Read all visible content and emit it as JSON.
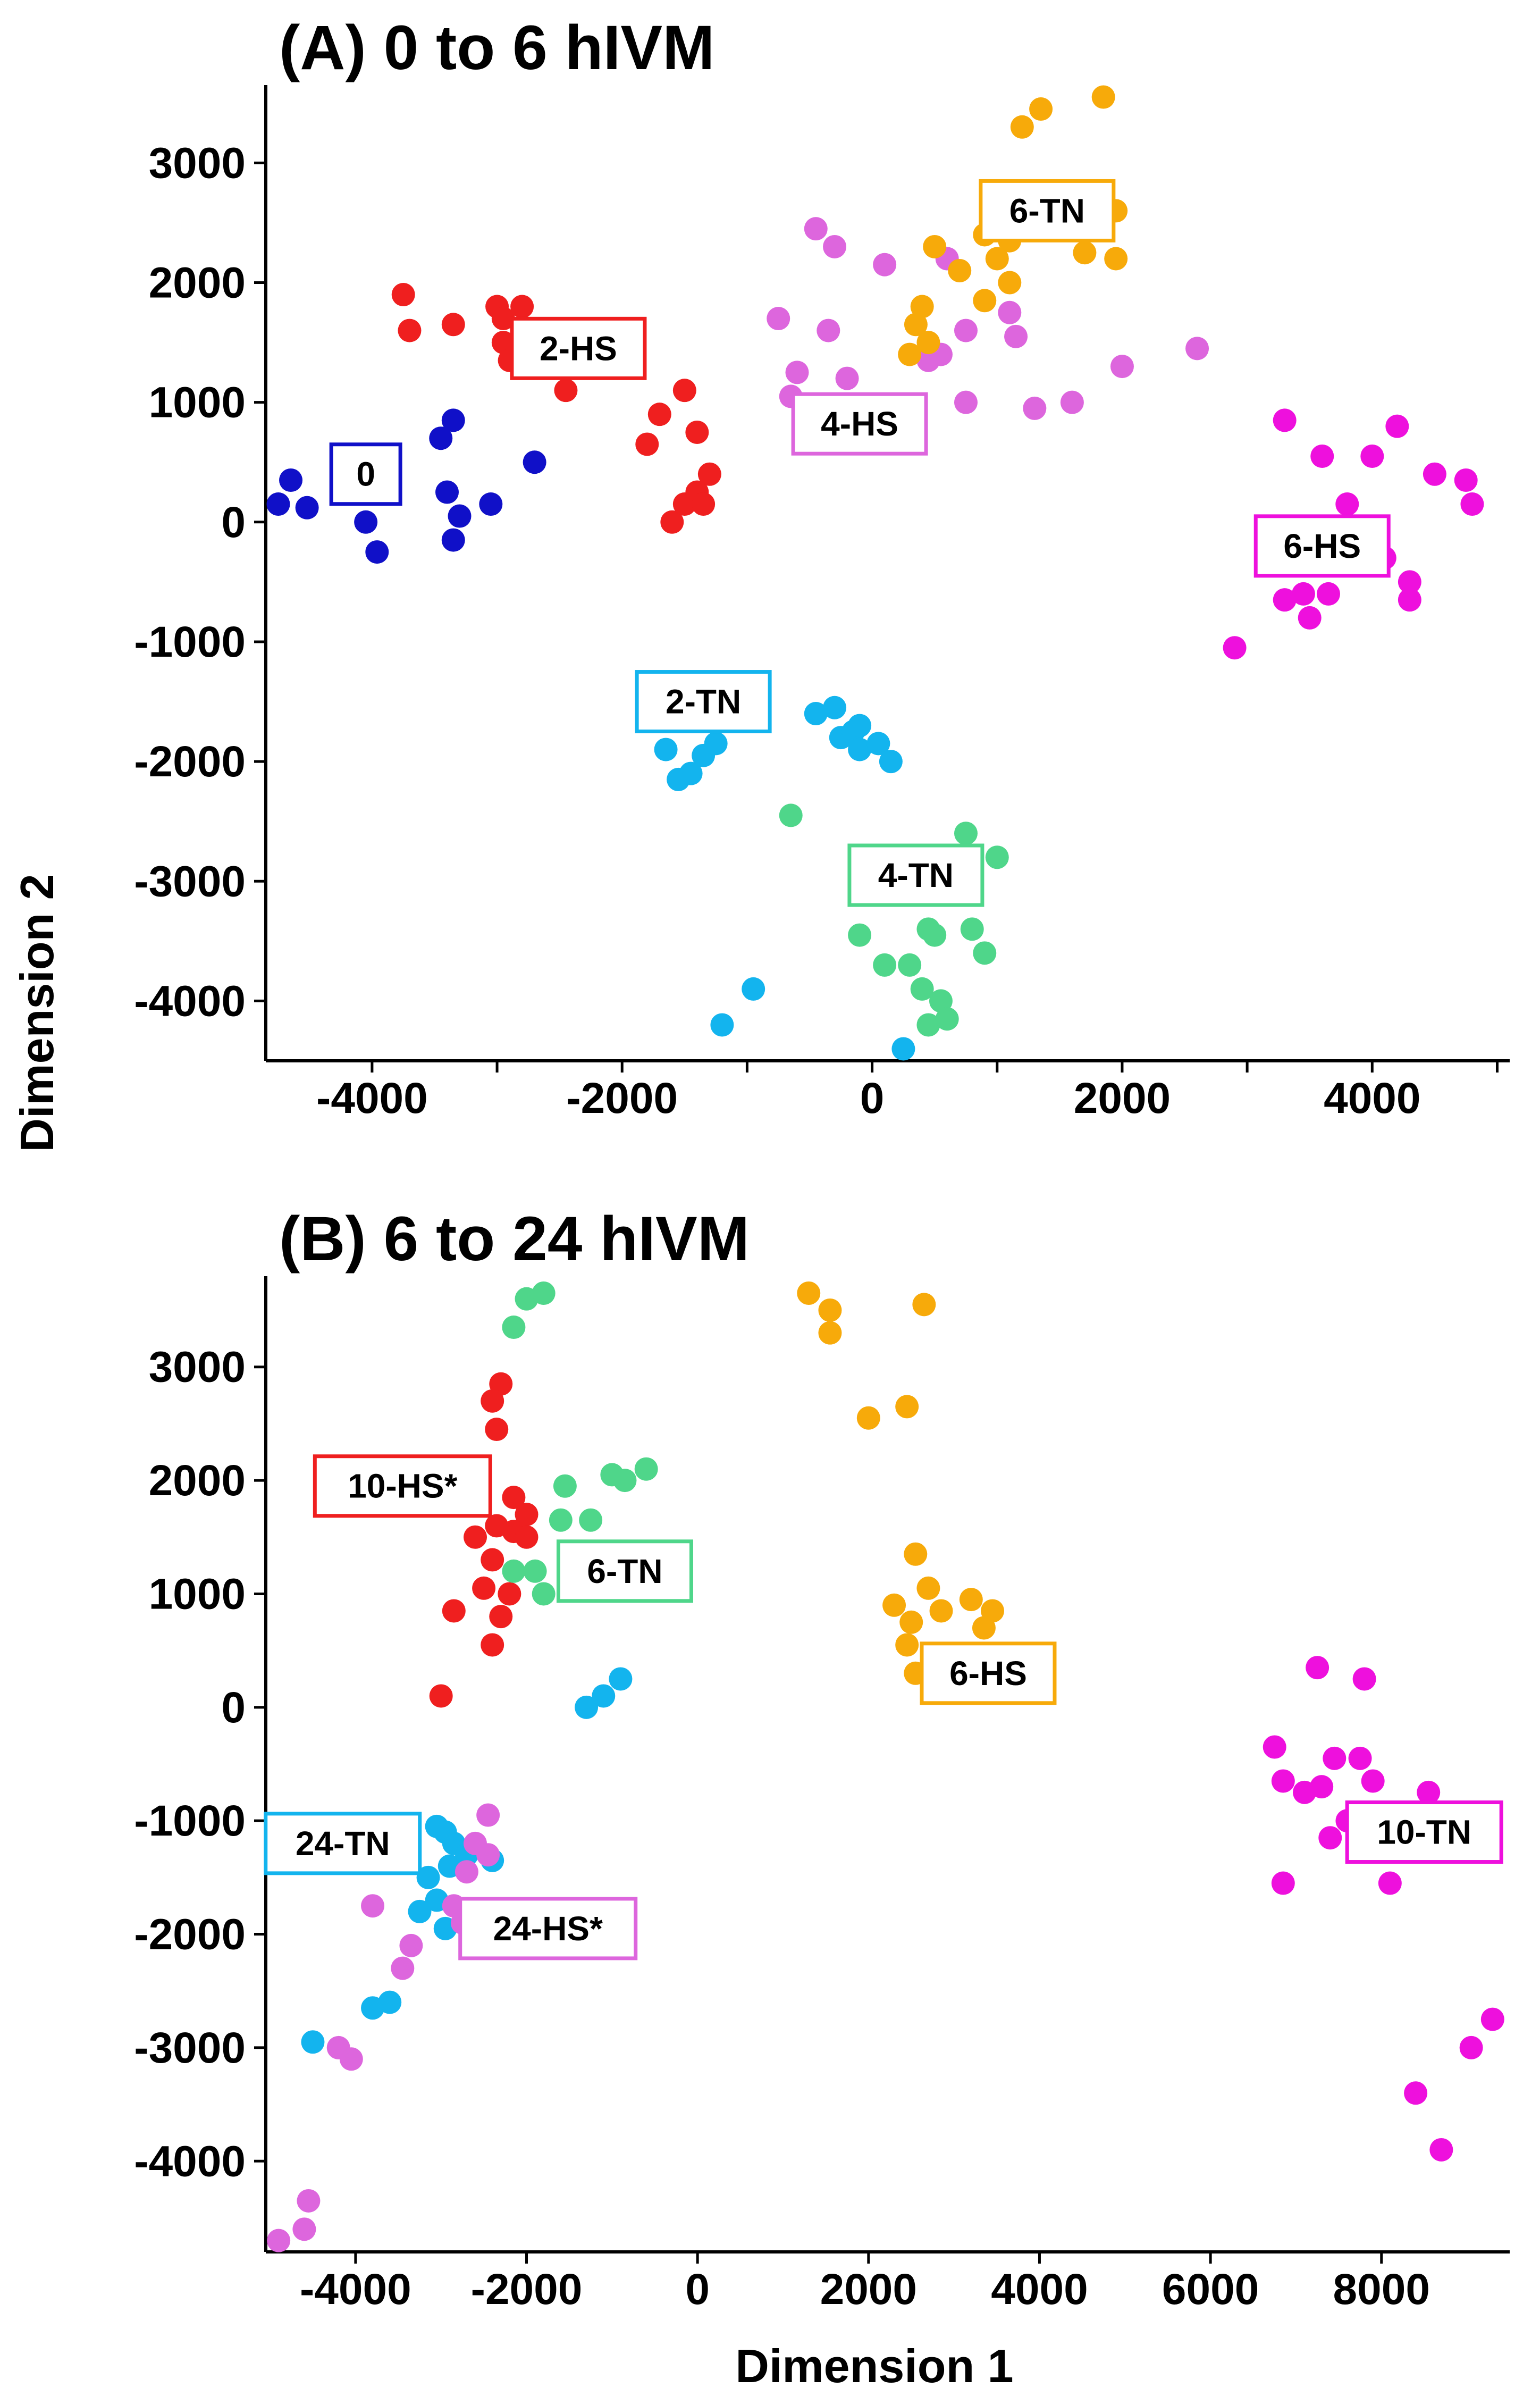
{
  "figure": {
    "axis_titles": {
      "x": "Dimension 1",
      "y": "Dimension 2"
    }
  },
  "colors": {
    "navy": "#1010c8",
    "red": "#ef1f1f",
    "violet": "#dd66dd",
    "orange": "#f7aa0a",
    "magenta": "#ee10dd",
    "cyan": "#13b4ee",
    "green": "#4fd68a"
  },
  "chart_data": [
    {
      "type": "scatter",
      "title": "(A) 0 to 6 hIVM",
      "xlabel": "",
      "ylabel": "",
      "xlim": [
        -4850,
        5100
      ],
      "ylim": [
        -4500,
        3650
      ],
      "xticks": [
        -4000,
        -3000,
        -2000,
        -1000,
        0,
        1000,
        2000,
        3000,
        4000,
        5000
      ],
      "xticklabels": [
        "-4000",
        "",
        "-2000",
        "",
        "0",
        "",
        "2000",
        "",
        "4000",
        ""
      ],
      "yticks": [
        3000,
        2000,
        1000,
        0,
        -1000,
        -2000,
        -3000,
        -4000
      ],
      "yticklabels": [
        "3000",
        "2000",
        "1000",
        "0",
        "-1000",
        "-2000",
        "-3000",
        "-4000"
      ],
      "grid": false,
      "series": [
        {
          "label": "0",
          "color": "navy",
          "label_pos": [
            -4050,
            400
          ],
          "points": [
            [
              -4650,
              350
            ],
            [
              -4750,
              150
            ],
            [
              -4520,
              120
            ],
            [
              -4050,
              0
            ],
            [
              -3960,
              -250
            ],
            [
              -3450,
              700
            ],
            [
              -3350,
              850
            ],
            [
              -3400,
              250
            ],
            [
              -3300,
              50
            ],
            [
              -3350,
              -150
            ],
            [
              -3050,
              150
            ],
            [
              -2700,
              500
            ]
          ]
        },
        {
          "label": "2-HS",
          "color": "red",
          "label_pos": [
            -2350,
            1450
          ],
          "points": [
            [
              -3750,
              1900
            ],
            [
              -3700,
              1600
            ],
            [
              -3350,
              1650
            ],
            [
              -3000,
              1800
            ],
            [
              -2800,
              1800
            ],
            [
              -2950,
              1700
            ],
            [
              -2950,
              1500
            ],
            [
              -2900,
              1350
            ],
            [
              -2450,
              1100
            ],
            [
              -1700,
              900
            ],
            [
              -1800,
              650
            ],
            [
              -1500,
              1100
            ],
            [
              -1400,
              750
            ],
            [
              -1600,
              0
            ],
            [
              -1500,
              150
            ],
            [
              -1400,
              250
            ],
            [
              -1350,
              150
            ],
            [
              -1300,
              400
            ]
          ]
        },
        {
          "label": "4-HS",
          "color": "violet",
          "label_pos": [
            -100,
            820
          ],
          "points": [
            [
              -750,
              1700
            ],
            [
              -600,
              1250
            ],
            [
              -650,
              1050
            ],
            [
              -450,
              2450
            ],
            [
              -300,
              2300
            ],
            [
              -350,
              1600
            ],
            [
              -200,
              1200
            ],
            [
              100,
              2150
            ],
            [
              450,
              1350
            ],
            [
              550,
              1400
            ],
            [
              600,
              2200
            ],
            [
              750,
              1600
            ],
            [
              750,
              1000
            ],
            [
              1100,
              1750
            ],
            [
              1150,
              1550
            ],
            [
              1300,
              950
            ],
            [
              1600,
              1000
            ],
            [
              2000,
              1300
            ],
            [
              2600,
              1450
            ]
          ]
        },
        {
          "label": "6-TN",
          "color": "orange",
          "label_pos": [
            1400,
            2600
          ],
          "points": [
            [
              1200,
              3300
            ],
            [
              1350,
              3450
            ],
            [
              1850,
              3550
            ],
            [
              1950,
              2600
            ],
            [
              1700,
              2250
            ],
            [
              1950,
              2200
            ],
            [
              1000,
              2500
            ],
            [
              900,
              2400
            ],
            [
              1100,
              2350
            ],
            [
              1000,
              2200
            ],
            [
              1100,
              2000
            ],
            [
              900,
              1850
            ],
            [
              700,
              2100
            ],
            [
              500,
              2300
            ],
            [
              400,
              1800
            ],
            [
              450,
              1500
            ],
            [
              350,
              1650
            ],
            [
              300,
              1400
            ]
          ]
        },
        {
          "label": "6-HS",
          "color": "magenta",
          "label_pos": [
            3600,
            -200
          ],
          "points": [
            [
              3300,
              850
            ],
            [
              3600,
              550
            ],
            [
              4200,
              800
            ],
            [
              4000,
              550
            ],
            [
              3800,
              150
            ],
            [
              4500,
              400
            ],
            [
              4750,
              350
            ],
            [
              4800,
              150
            ],
            [
              4100,
              -300
            ],
            [
              4300,
              -500
            ],
            [
              4300,
              -650
            ],
            [
              3300,
              -650
            ],
            [
              3450,
              -600
            ],
            [
              3650,
              -600
            ],
            [
              3500,
              -800
            ],
            [
              2900,
              -1050
            ]
          ]
        },
        {
          "label": "2-TN",
          "color": "cyan",
          "label_pos": [
            -1350,
            -1500
          ],
          "points": [
            [
              -1650,
              -1900
            ],
            [
              -1550,
              -2150
            ],
            [
              -1450,
              -2100
            ],
            [
              -1350,
              -1950
            ],
            [
              -1250,
              -1850
            ],
            [
              -450,
              -1600
            ],
            [
              -300,
              -1550
            ],
            [
              -250,
              -1800
            ],
            [
              -150,
              -1750
            ],
            [
              -100,
              -1900
            ],
            [
              50,
              -1850
            ],
            [
              150,
              -2000
            ],
            [
              -100,
              -1700
            ],
            [
              -1200,
              -4200
            ],
            [
              -950,
              -3900
            ],
            [
              250,
              -4400
            ]
          ]
        },
        {
          "label": "4-TN",
          "color": "green",
          "label_pos": [
            350,
            -2950
          ],
          "points": [
            [
              -650,
              -2450
            ],
            [
              -100,
              -3450
            ],
            [
              100,
              -3700
            ],
            [
              300,
              -3700
            ],
            [
              450,
              -3400
            ],
            [
              500,
              -3450
            ],
            [
              400,
              -3900
            ],
            [
              550,
              -4000
            ],
            [
              450,
              -4200
            ],
            [
              600,
              -4150
            ],
            [
              750,
              -2600
            ],
            [
              800,
              -3400
            ],
            [
              900,
              -3600
            ],
            [
              1000,
              -2800
            ]
          ]
        }
      ]
    },
    {
      "type": "scatter",
      "title": "(B) 6 to 24 hIVM",
      "xlabel": "Dimension 1",
      "ylabel": "",
      "xlim": [
        -5050,
        9500
      ],
      "ylim": [
        -4800,
        3800
      ],
      "xticks": [
        -4000,
        -2000,
        0,
        2000,
        4000,
        6000,
        8000
      ],
      "xticklabels": [
        "-4000",
        "-2000",
        "0",
        "2000",
        "4000",
        "6000",
        "8000"
      ],
      "yticks": [
        3000,
        2000,
        1000,
        0,
        -1000,
        -2000,
        -3000,
        -4000
      ],
      "yticklabels": [
        "3000",
        "2000",
        "1000",
        "0",
        "-1000",
        "-2000",
        "-3000",
        "-4000"
      ],
      "grid": false,
      "series": [
        {
          "label": "10-HS*",
          "color": "red",
          "label_pos": [
            -3450,
            1950
          ],
          "points": [
            [
              -2300,
              2850
            ],
            [
              -2400,
              2700
            ],
            [
              -2350,
              2450
            ],
            [
              -2150,
              1850
            ],
            [
              -2000,
              1700
            ],
            [
              -2150,
              1550
            ],
            [
              -2350,
              1600
            ],
            [
              -2600,
              1500
            ],
            [
              -2400,
              1300
            ],
            [
              -2000,
              1500
            ],
            [
              -2500,
              1050
            ],
            [
              -2200,
              1000
            ],
            [
              -2300,
              800
            ],
            [
              -2850,
              850
            ],
            [
              -2400,
              550
            ],
            [
              -3000,
              100
            ]
          ]
        },
        {
          "label": "6-TN",
          "color": "green",
          "label_pos": [
            -850,
            1200
          ],
          "points": [
            [
              -2150,
              3350
            ],
            [
              -2000,
              3600
            ],
            [
              -1800,
              3650
            ],
            [
              -1550,
              1950
            ],
            [
              -1000,
              2050
            ],
            [
              -850,
              2000
            ],
            [
              -600,
              2100
            ],
            [
              -1600,
              1650
            ],
            [
              -1250,
              1650
            ],
            [
              -2150,
              1200
            ],
            [
              -1900,
              1200
            ],
            [
              -1800,
              1000
            ]
          ]
        },
        {
          "label": "6-HS",
          "color": "orange",
          "label_pos": [
            3400,
            300
          ],
          "points": [
            [
              1300,
              3650
            ],
            [
              1550,
              3500
            ],
            [
              1550,
              3300
            ],
            [
              2000,
              2550
            ],
            [
              2450,
              2650
            ],
            [
              2650,
              3550
            ],
            [
              2550,
              1350
            ],
            [
              2300,
              900
            ],
            [
              2500,
              750
            ],
            [
              2700,
              1050
            ],
            [
              2850,
              850
            ],
            [
              3200,
              950
            ],
            [
              3450,
              850
            ],
            [
              3350,
              700
            ],
            [
              2450,
              550
            ],
            [
              2550,
              300
            ]
          ]
        },
        {
          "label": "10-TN",
          "color": "magenta",
          "label_pos": [
            8500,
            -1100
          ],
          "points": [
            [
              7250,
              350
            ],
            [
              7800,
              250
            ],
            [
              6750,
              -350
            ],
            [
              6850,
              -650
            ],
            [
              7100,
              -750
            ],
            [
              7300,
              -700
            ],
            [
              7450,
              -450
            ],
            [
              7750,
              -450
            ],
            [
              7900,
              -650
            ],
            [
              8550,
              -750
            ],
            [
              8100,
              -1550
            ],
            [
              7600,
              -1000
            ],
            [
              7400,
              -1150
            ],
            [
              6850,
              -1550
            ],
            [
              9300,
              -2750
            ],
            [
              9050,
              -3000
            ],
            [
              8400,
              -3400
            ],
            [
              8700,
              -3900
            ]
          ]
        },
        {
          "label": "24-TN",
          "color": "cyan",
          "label_pos": [
            -4150,
            -1200
          ],
          "points": [
            [
              -1300,
              0
            ],
            [
              -1100,
              100
            ],
            [
              -900,
              250
            ],
            [
              -3050,
              -1050
            ],
            [
              -2950,
              -1100
            ],
            [
              -2850,
              -1200
            ],
            [
              -3150,
              -1500
            ],
            [
              -3050,
              -1700
            ],
            [
              -2900,
              -1400
            ],
            [
              -2700,
              -1300
            ],
            [
              -2400,
              -1350
            ],
            [
              -3250,
              -1800
            ],
            [
              -2950,
              -1950
            ],
            [
              -3600,
              -2600
            ],
            [
              -3800,
              -2650
            ],
            [
              -4500,
              -2950
            ]
          ]
        },
        {
          "label": "24-HS*",
          "color": "violet",
          "label_pos": [
            -1750,
            -1950
          ],
          "points": [
            [
              -2450,
              -950
            ],
            [
              -2600,
              -1200
            ],
            [
              -2450,
              -1300
            ],
            [
              -2700,
              -1450
            ],
            [
              -2850,
              -1750
            ],
            [
              -2750,
              -1900
            ],
            [
              -3800,
              -1750
            ],
            [
              -3350,
              -2100
            ],
            [
              -3450,
              -2300
            ],
            [
              -4200,
              -3000
            ],
            [
              -4050,
              -3100
            ],
            [
              -4550,
              -4350
            ],
            [
              -4600,
              -4600
            ],
            [
              -4900,
              -4700
            ]
          ]
        }
      ]
    }
  ]
}
